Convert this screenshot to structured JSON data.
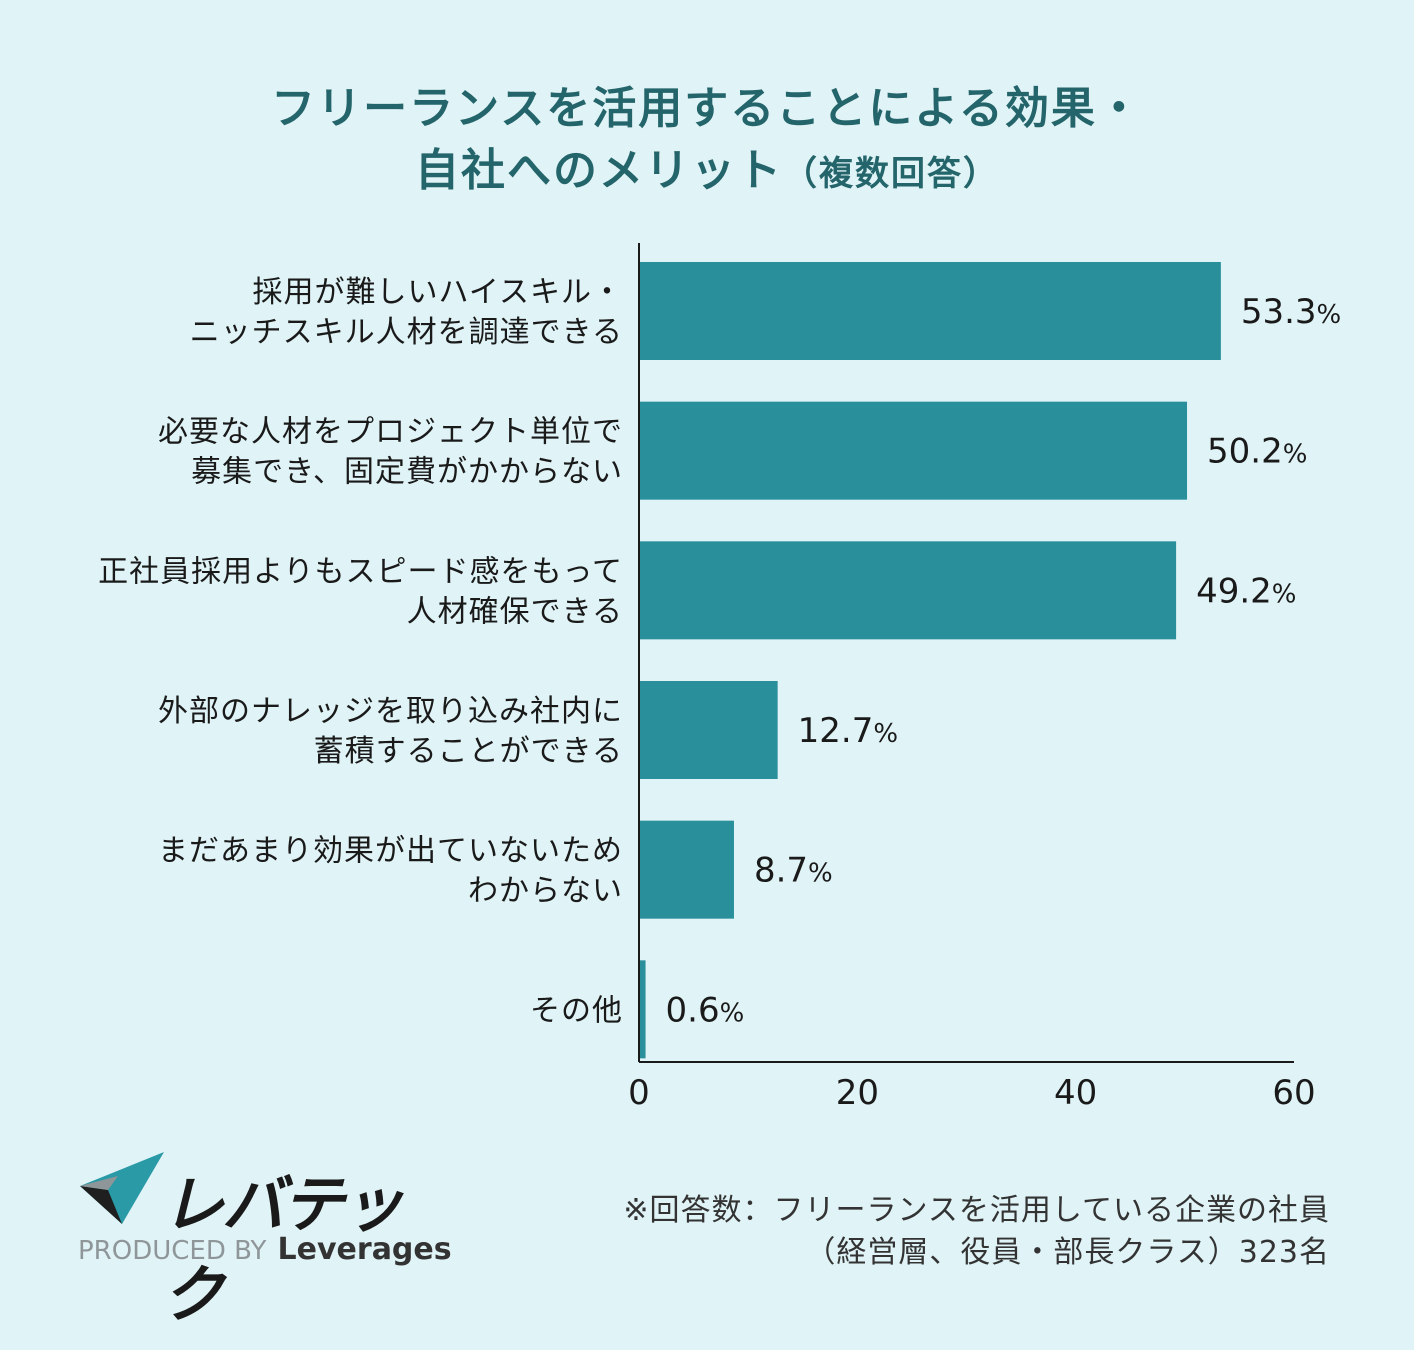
{
  "title_line1": "フリーランスを活用することによる効果・",
  "title_line2": "自社へのメリット",
  "title_paren": "（複数回答）",
  "chart_data": {
    "type": "bar",
    "orientation": "horizontal",
    "categories": [
      [
        "採用が難しいハイスキル・",
        "ニッチスキル人材を調達できる"
      ],
      [
        "必要な人材をプロジェクト単位で",
        "募集でき、固定費がかからない"
      ],
      [
        "正社員採用よりもスピード感をもって",
        "人材確保できる"
      ],
      [
        "外部のナレッジを取り込み社内に",
        "蓄積することができる"
      ],
      [
        "まだあまり効果が出ていないため",
        "わからない"
      ],
      [
        "その他"
      ]
    ],
    "values": [
      53.3,
      50.2,
      49.2,
      12.7,
      8.7,
      0.6
    ],
    "value_labels": [
      "53.3",
      "50.2",
      "49.2",
      "12.7",
      "8.7",
      "0.6"
    ],
    "value_suffix": "%",
    "xlim": [
      0,
      60
    ],
    "xticks": [
      0,
      20,
      40,
      60
    ],
    "grid": false,
    "bar_color": "#288f9b"
  },
  "footnote_line1": "※回答数：フリーランスを活用している企業の社員",
  "footnote_line2": "（経営層、役員・部長クラス）323名",
  "logo": {
    "wordmark": "レバテック",
    "produced_by": "PRODUCED BY",
    "brand": "Leverages"
  }
}
